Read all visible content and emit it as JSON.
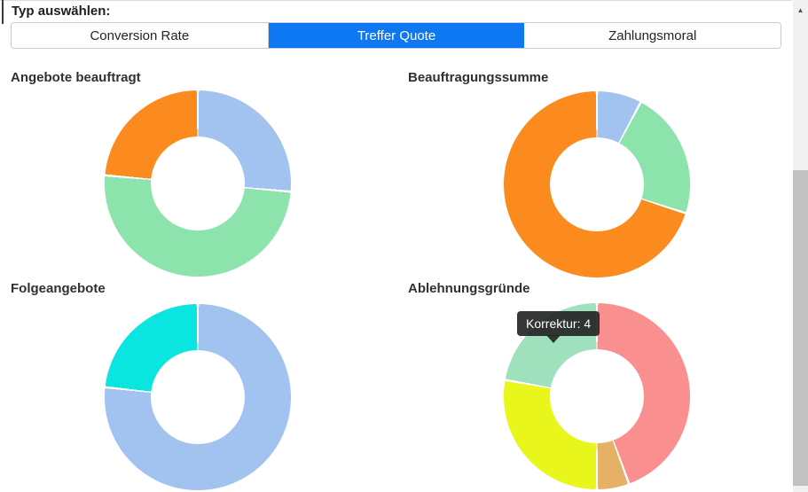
{
  "header": {
    "label": "Typ auswählen:"
  },
  "tabs": [
    {
      "label": "Conversion Rate",
      "active": false
    },
    {
      "label": "Treffer Quote",
      "active": true
    },
    {
      "label": "Zahlungsmoral",
      "active": false
    }
  ],
  "colors": {
    "accent_active_tab": "#0d78f2",
    "tab_text": "#212529",
    "palette_blue": "#a2c3f0",
    "palette_green": "#8de3ac",
    "palette_orange": "#fb8b1e",
    "palette_cyan": "#0be5df",
    "palette_red": "#f98f8f",
    "palette_yellow": "#e9f61c",
    "palette_tan": "#e4b166",
    "palette_mint": "#9fe0bd",
    "scrollbar_track": "#f1f1f1",
    "scrollbar_thumb": "#c1c1c1"
  },
  "icons": {
    "scroll_up_arrow": "▲"
  },
  "tooltip": {
    "text": "Korrektur: 4"
  },
  "chart_data": [
    {
      "type": "pie",
      "title": "Angebote beauftragt",
      "donut": true,
      "start": "top, clockwise",
      "segments": [
        {
          "color": "#a2c3f0",
          "percent": 26.4
        },
        {
          "color": "#8de3ac",
          "percent": 50.0
        },
        {
          "color": "#fb8b1e",
          "percent": 23.6
        }
      ]
    },
    {
      "type": "pie",
      "title": "Beauftragungssumme",
      "donut": true,
      "start": "top, clockwise",
      "segments": [
        {
          "color": "#a2c3f0",
          "percent": 7.8
        },
        {
          "color": "#8de3ac",
          "percent": 22.2
        },
        {
          "color": "#fb8b1e",
          "percent": 70.0
        }
      ]
    },
    {
      "type": "pie",
      "title": "Folgeangebote",
      "donut": true,
      "start": "top, clockwise",
      "segments": [
        {
          "color": "#a2c3f0",
          "percent": 76.7
        },
        {
          "color": "#0be5df",
          "percent": 23.3
        }
      ]
    },
    {
      "type": "pie",
      "title": "Ablehnungsgründe",
      "donut": true,
      "start": "top, clockwise",
      "segments": [
        {
          "color": "#f98f8f",
          "percent": 44.4
        },
        {
          "color": "#e4b166",
          "percent": 5.6
        },
        {
          "color": "#e9f61c",
          "percent": 27.8
        },
        {
          "color": "#9fe0bd",
          "percent": 22.2,
          "label": "Korrektur",
          "value": 4
        }
      ]
    }
  ]
}
